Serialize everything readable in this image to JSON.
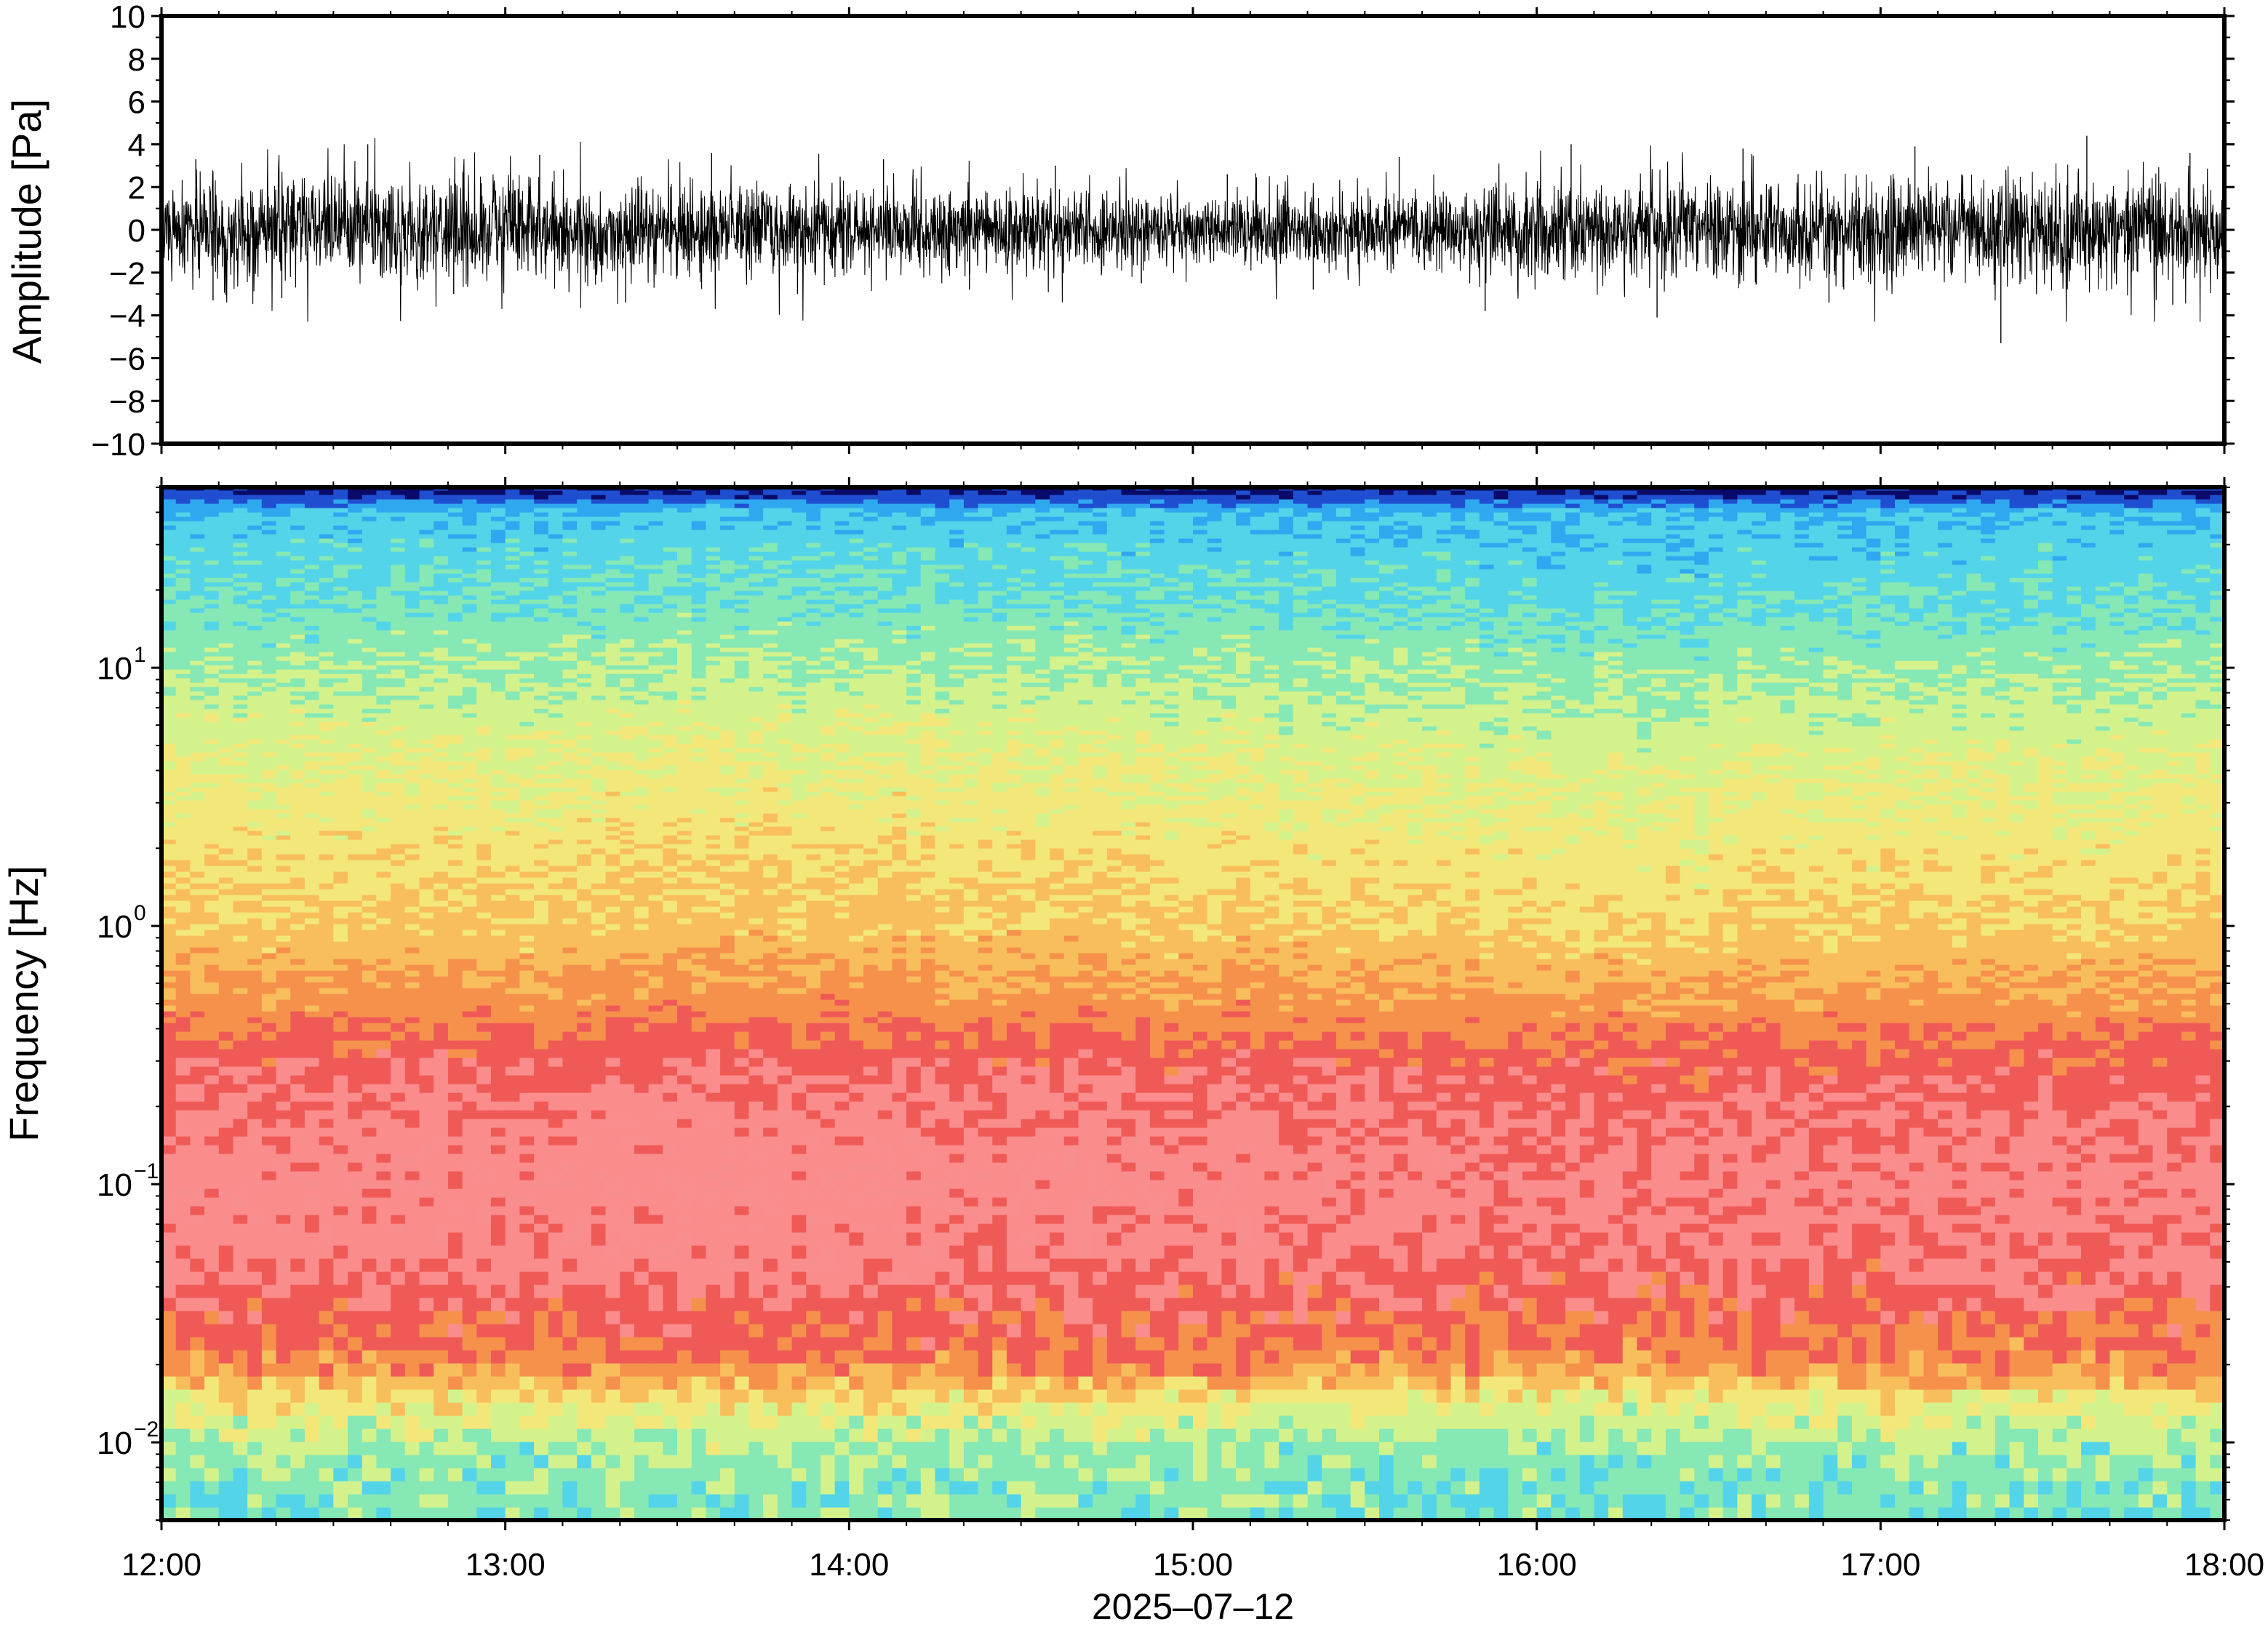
{
  "chart_data": [
    {
      "type": "line",
      "title": "",
      "xlabel": "",
      "ylabel": "Amplitude [Pa]",
      "ylim": [
        -10,
        10
      ],
      "yticks": [
        "10",
        "8",
        "6",
        "4",
        "2",
        "0",
        "−2",
        "−4",
        "−6",
        "−8",
        "−10"
      ],
      "ytick_values": [
        10,
        8,
        6,
        4,
        2,
        0,
        -2,
        -4,
        -6,
        -8,
        -10
      ],
      "xlim": [
        "12:00",
        "18:00"
      ],
      "series": [
        {
          "color": "#000000",
          "envelope_pa": {
            "x": [
              "12:00",
              "12:30",
              "13:00",
              "13:30",
              "14:00",
              "14:30",
              "15:00",
              "15:30",
              "16:00",
              "16:30",
              "17:00",
              "17:30",
              "18:00"
            ],
            "typical_abs_max": [
              3.0,
              3.2,
              3.0,
              2.8,
              2.8,
              2.4,
              2.2,
              2.4,
              2.8,
              3.0,
              3.2,
              3.4,
              3.3
            ],
            "peak_max": [
              3.3,
              4.0,
              3.5,
              3.6,
              3.3,
              3.0,
              2.6,
              3.4,
              4.0,
              3.8,
              3.9,
              4.4,
              3.6
            ],
            "peak_min": [
              -3.3,
              -3.2,
              -3.0,
              -3.4,
              -3.0,
              -2.8,
              -2.5,
              -2.8,
              -3.8,
              -4.1,
              -3.4,
              -5.3,
              -3.5
            ]
          }
        }
      ],
      "grid": false
    },
    {
      "type": "heatmap",
      "title": "",
      "xlabel": "2025–07–12",
      "ylabel": "Frequency [Hz]",
      "yscale": "log",
      "ylim": [
        0.005,
        50
      ],
      "yticks": [
        {
          "base": "10",
          "exp": "−2",
          "value": 0.01
        },
        {
          "base": "10",
          "exp": "−1",
          "value": 0.1
        },
        {
          "base": "10",
          "exp": "0",
          "value": 1
        },
        {
          "base": "10",
          "exp": "1",
          "value": 10
        }
      ],
      "xticks": [
        "12:00",
        "13:00",
        "14:00",
        "15:00",
        "16:00",
        "17:00",
        "18:00"
      ],
      "colorscale": [
        "#0a0a6a",
        "#1f4fd0",
        "#2fa8f0",
        "#53d4e8",
        "#86e8b4",
        "#d4f28c",
        "#f3e77a",
        "#f9be5c",
        "#f6914c",
        "#f05a56",
        "#fa8c8c",
        "#f88e8e"
      ],
      "spectral_profile": {
        "frequency_hz": [
          0.007,
          0.01,
          0.015,
          0.02,
          0.03,
          0.05,
          0.1,
          0.2,
          0.3,
          0.5,
          1,
          2,
          5,
          10,
          20,
          40,
          48
        ],
        "level_index": [
          3.8,
          4.4,
          6.0,
          8.0,
          8.8,
          9.6,
          10.0,
          9.5,
          9.0,
          7.8,
          6.6,
          6.0,
          5.2,
          4.3,
          3.3,
          2.6,
          0.3
        ]
      },
      "grid": false
    }
  ]
}
